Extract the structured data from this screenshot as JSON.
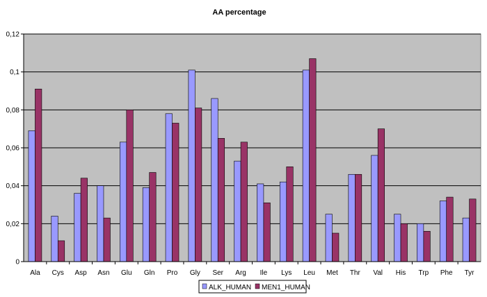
{
  "chart_data": {
    "type": "bar",
    "title": "AA percentage",
    "xlabel": "",
    "ylabel": "",
    "ylim": [
      0,
      0.12
    ],
    "yticks": [
      "0",
      "0,02",
      "0,04",
      "0,06",
      "0,08",
      "0,1",
      "0,12"
    ],
    "grid": true,
    "legend_position": "bottom",
    "categories": [
      "Ala",
      "Cys",
      "Asp",
      "Asn",
      "Glu",
      "Gln",
      "Pro",
      "Gly",
      "Ser",
      "Arg",
      "Ile",
      "Lys",
      "Leu",
      "Met",
      "Thr",
      "Val",
      "His",
      "Trp",
      "Phe",
      "Tyr"
    ],
    "series": [
      {
        "name": "ALK_HUMAN",
        "color": "#9999FF",
        "values": [
          0.069,
          0.024,
          0.036,
          0.04,
          0.063,
          0.039,
          0.078,
          0.101,
          0.086,
          0.053,
          0.041,
          0.042,
          0.101,
          0.025,
          0.046,
          0.056,
          0.025,
          0.02,
          0.032,
          0.023
        ]
      },
      {
        "name": "MEN1_HUMAN",
        "color": "#993366",
        "values": [
          0.091,
          0.011,
          0.044,
          0.023,
          0.08,
          0.047,
          0.073,
          0.081,
          0.065,
          0.063,
          0.031,
          0.05,
          0.107,
          0.015,
          0.046,
          0.07,
          0.02,
          0.016,
          0.034,
          0.033
        ]
      }
    ],
    "plot_background": "#C0C0C0"
  }
}
